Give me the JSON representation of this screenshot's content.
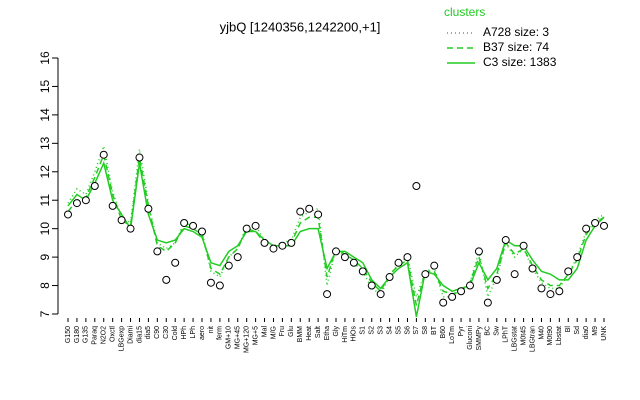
{
  "chart_data": {
    "type": "line",
    "title": "yjbQ [1240356,1242200,+1]",
    "legend_title": "clusters",
    "ylim": [
      7,
      16
    ],
    "yticks": [
      7,
      8,
      9,
      10,
      11,
      12,
      13,
      14,
      15,
      16
    ],
    "categories": [
      "G150",
      "G180",
      "G135",
      "Paraq",
      "N2O2",
      "Oxctl",
      "LBGexp",
      "Diami",
      "dia15",
      "dia5",
      "C90",
      "C30",
      "Cold",
      "HPh",
      "LPh",
      "aero",
      "nit",
      "ferm",
      "GM+10",
      "MG+45",
      "MG+120",
      "MG+5",
      "Mal",
      "M/G",
      "Fru",
      "Glu",
      "BMM",
      "Heat",
      "Salt",
      "Etha",
      "Gly",
      "HiTm",
      "HiOs",
      "S1",
      "S2",
      "S3",
      "S4",
      "S5",
      "S6",
      "S7",
      "S8",
      "BT",
      "B60",
      "LoTm",
      "Pyr",
      "Gluconi",
      "SMMPy",
      "BC",
      "Sw",
      "LPhT",
      "LBGstat",
      "M0t45",
      "LBGtran",
      "M40",
      "M0t90",
      "Lbstat",
      "Bl",
      "Sd",
      "dia0",
      "M9",
      "UNK"
    ],
    "points": {
      "color": "#000000",
      "values": [
        10.5,
        10.9,
        11.0,
        11.5,
        12.6,
        10.8,
        10.3,
        10.0,
        12.5,
        10.7,
        9.2,
        8.2,
        8.8,
        10.2,
        10.1,
        9.9,
        8.1,
        8.0,
        8.7,
        9.0,
        10.0,
        10.1,
        9.5,
        9.3,
        9.4,
        9.5,
        10.6,
        10.7,
        10.5,
        7.7,
        9.2,
        9.0,
        8.8,
        8.5,
        8.0,
        7.7,
        8.3,
        8.8,
        9.0,
        11.5,
        8.4,
        8.7,
        7.4,
        7.6,
        7.8,
        8.0,
        9.2,
        7.4,
        8.2,
        9.6,
        8.4,
        9.4,
        8.6,
        7.9,
        7.7,
        7.8,
        8.5,
        9.0,
        10.0,
        10.2,
        10.1
      ]
    },
    "series": [
      {
        "name": "A728 size: 3",
        "color": "#22cc22",
        "style": "dotted",
        "values": [
          10.9,
          11.4,
          11.2,
          12.0,
          12.9,
          11.3,
          10.4,
          10.2,
          12.8,
          10.9,
          9.5,
          9.3,
          9.5,
          10.2,
          10.1,
          9.9,
          8.5,
          8.3,
          9.0,
          9.3,
          10.1,
          10.1,
          9.6,
          9.4,
          9.5,
          9.6,
          10.4,
          10.6,
          10.7,
          8.0,
          9.3,
          9.0,
          8.8,
          8.5,
          7.9,
          7.7,
          8.3,
          8.8,
          9.0,
          7.6,
          8.5,
          8.6,
          7.6,
          7.6,
          7.8,
          8.1,
          9.2,
          7.6,
          8.3,
          9.5,
          9.0,
          9.3,
          8.6,
          8.1,
          7.9,
          7.9,
          8.4,
          9.0,
          9.9,
          10.3,
          10.5
        ]
      },
      {
        "name": "B37 size: 74",
        "color": "#22cc22",
        "style": "dashed",
        "values": [
          10.6,
          11.0,
          11.1,
          11.8,
          12.6,
          11.2,
          10.3,
          10.1,
          12.5,
          10.8,
          9.4,
          9.2,
          9.5,
          10.1,
          10.0,
          9.8,
          8.6,
          8.4,
          9.0,
          9.3,
          10.0,
          9.9,
          9.5,
          9.3,
          9.5,
          9.5,
          10.2,
          10.4,
          10.4,
          8.3,
          9.3,
          9.1,
          8.9,
          8.6,
          8.1,
          7.8,
          8.4,
          8.7,
          8.9,
          7.3,
          8.5,
          8.5,
          7.8,
          7.7,
          7.8,
          8.1,
          9.0,
          7.9,
          8.4,
          9.5,
          9.1,
          9.3,
          8.7,
          8.2,
          8.0,
          8.0,
          8.4,
          8.9,
          9.8,
          10.2,
          10.4
        ]
      },
      {
        "name": "C3 size: 1383",
        "color": "#22cc22",
        "style": "solid",
        "values": [
          10.8,
          11.2,
          11.0,
          11.6,
          12.3,
          11.0,
          10.5,
          10.0,
          12.3,
          10.5,
          9.6,
          9.5,
          9.6,
          10.0,
          9.9,
          9.7,
          8.8,
          8.7,
          9.2,
          9.4,
          9.9,
          9.9,
          9.6,
          9.4,
          9.4,
          9.4,
          9.9,
          10.0,
          10.0,
          8.6,
          9.2,
          9.2,
          9.0,
          8.8,
          8.2,
          7.9,
          8.3,
          8.6,
          8.8,
          6.9,
          8.5,
          8.4,
          8.0,
          7.8,
          7.9,
          8.0,
          8.8,
          8.2,
          8.6,
          9.6,
          9.4,
          9.4,
          8.9,
          8.5,
          8.4,
          8.2,
          8.2,
          8.6,
          9.6,
          10.1,
          10.4
        ]
      }
    ]
  }
}
